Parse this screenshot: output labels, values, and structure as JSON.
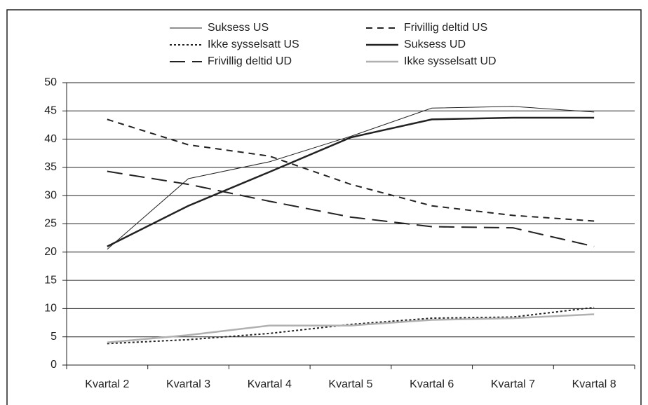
{
  "chart_data": {
    "type": "line",
    "categories": [
      "Kvartal 2",
      "Kvartal 3",
      "Kvartal 4",
      "Kvartal 5",
      "Kvartal 6",
      "Kvartal 7",
      "Kvartal 8"
    ],
    "series": [
      {
        "name": "Suksess US",
        "color": "#222222",
        "width": 1,
        "dash": "",
        "values": [
          20.5,
          33,
          36,
          40.5,
          45.5,
          45.8,
          44.8
        ]
      },
      {
        "name": "Frivillig deltid US",
        "color": "#222222",
        "width": 2,
        "dash": "9 7",
        "values": [
          43.5,
          39,
          37,
          32,
          28.2,
          26.5,
          25.5
        ]
      },
      {
        "name": "Ikke sysselsatt US",
        "color": "#222222",
        "width": 2,
        "dash": "3 3",
        "values": [
          3.8,
          4.5,
          5.6,
          7.2,
          8.3,
          8.5,
          10.2
        ]
      },
      {
        "name": "Suksess UD",
        "color": "#222222",
        "width": 2.5,
        "dash": "",
        "values": [
          21,
          28.2,
          34.2,
          40.3,
          43.5,
          43.8,
          43.8
        ]
      },
      {
        "name": "Frivillig deltid UD",
        "color": "#222222",
        "width": 2,
        "dash": "22 10",
        "values": [
          34.3,
          32,
          29,
          26.2,
          24.5,
          24.3,
          21
        ]
      },
      {
        "name": "Ikke sysselsatt UD",
        "color": "#b0b0b0",
        "width": 2.5,
        "dash": "",
        "values": [
          4,
          5.3,
          7,
          7,
          8,
          8.3,
          9
        ]
      }
    ],
    "ylim": [
      0,
      50
    ],
    "yticks": [
      0,
      5,
      10,
      15,
      20,
      25,
      30,
      35,
      40,
      45,
      50
    ],
    "grid": true,
    "legend": "top"
  }
}
